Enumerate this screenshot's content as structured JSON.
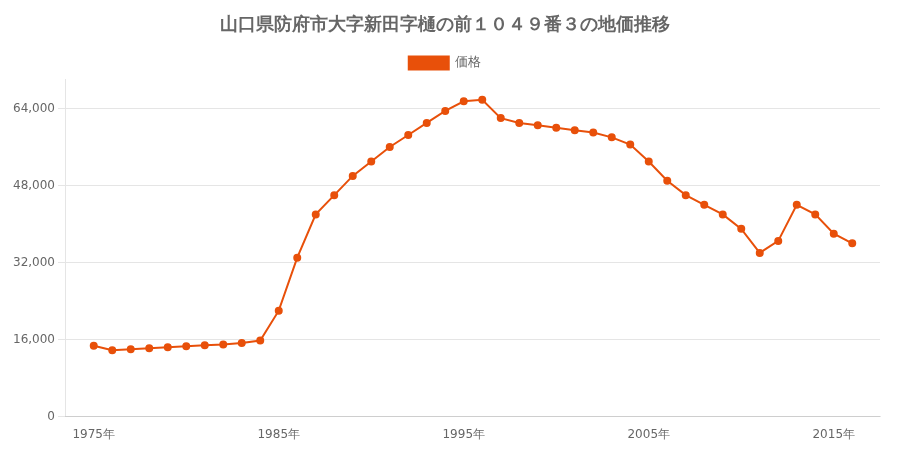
{
  "chart_data": {
    "type": "line",
    "title": "山口県防府市大字新田字樋の前１０４９番３の地価推移",
    "x": [
      1975,
      1976,
      1977,
      1978,
      1979,
      1980,
      1981,
      1982,
      1983,
      1984,
      1985,
      1986,
      1987,
      1988,
      1989,
      1990,
      1991,
      1992,
      1993,
      1994,
      1995,
      1996,
      1997,
      1998,
      1999,
      2000,
      2001,
      2002,
      2003,
      2004,
      2005,
      2006,
      2007,
      2008,
      2009,
      2010,
      2011,
      2012,
      2013,
      2014,
      2015,
      2016
    ],
    "series": [
      {
        "name": "価格",
        "color": "#E8500A",
        "marker": "circle",
        "line_style": "solid",
        "values": [
          14700,
          13800,
          14000,
          14200,
          14400,
          14600,
          14800,
          15000,
          15300,
          15800,
          22000,
          33000,
          42000,
          46000,
          50000,
          53000,
          56000,
          58500,
          61000,
          63500,
          65500,
          65800,
          62000,
          61000,
          60500,
          60000,
          59500,
          59000,
          58000,
          56500,
          53000,
          49000,
          46000,
          44000,
          42000,
          39000,
          34000,
          36500,
          44000,
          42000,
          38000,
          36000
        ]
      }
    ],
    "xlim": [
      1973.5,
      2017.5
    ],
    "xticks": [
      {
        "value": 1975,
        "label": "1975年"
      },
      {
        "value": 1985,
        "label": "1985年"
      },
      {
        "value": 1995,
        "label": "1995年"
      },
      {
        "value": 2005,
        "label": "2005年"
      },
      {
        "value": 2015,
        "label": "2015年"
      }
    ],
    "ylim": [
      0,
      70000
    ],
    "yticks": [
      0,
      {
        "value": 16000,
        "label": "16,000"
      },
      {
        "value": 32000,
        "label": "32,000"
      },
      {
        "value": 48000,
        "label": "48,000"
      },
      {
        "value": 64000,
        "label": "64,000"
      }
    ],
    "grid": true,
    "legend": "top"
  }
}
